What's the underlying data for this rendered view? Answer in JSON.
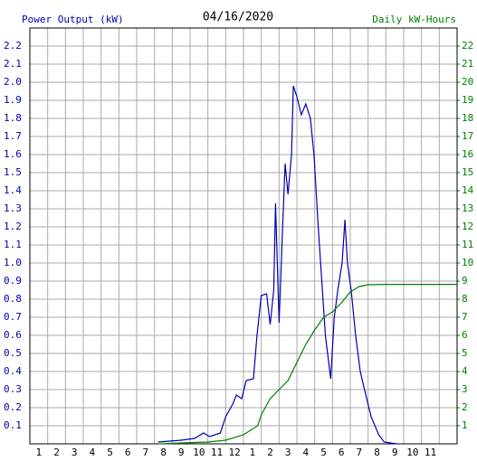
{
  "chart_data": {
    "type": "line",
    "title": "04/16/2020",
    "y_label": "Power Output (kW)",
    "y2_label": "Daily kW-Hours",
    "xlim": [
      0,
      24
    ],
    "xticks": [
      1,
      2,
      3,
      4,
      5,
      6,
      7,
      8,
      9,
      10,
      11,
      12,
      {
        "value": 13,
        "label": "1"
      },
      {
        "value": 14,
        "label": "2"
      },
      {
        "value": 15,
        "label": "3"
      },
      {
        "value": 16,
        "label": "4"
      },
      {
        "value": 17,
        "label": "5"
      },
      {
        "value": 18,
        "label": "6"
      },
      {
        "value": 19,
        "label": "7"
      },
      {
        "value": 20,
        "label": "8"
      },
      {
        "value": 21,
        "label": "9"
      },
      {
        "value": 22,
        "label": "10"
      },
      {
        "value": 23,
        "label": "11"
      }
    ],
    "ylim": [
      0,
      2.3
    ],
    "yticks": [
      0.1,
      0.2,
      0.3,
      0.4,
      0.5,
      0.6,
      0.7,
      0.8,
      0.9,
      {
        "value": 1,
        "label": "1.0"
      },
      1.1,
      1.2,
      1.3,
      1.4,
      1.5,
      1.6,
      1.7,
      1.8,
      1.9,
      {
        "value": 2,
        "label": "2.0"
      },
      2.1,
      2.2
    ],
    "y2lim": [
      0,
      23
    ],
    "y2ticks": [
      1,
      2,
      3,
      4,
      5,
      6,
      7,
      8,
      9,
      10,
      11,
      12,
      13,
      14,
      15,
      16,
      17,
      18,
      19,
      20,
      21,
      22
    ],
    "grid": true,
    "series": [
      {
        "name": "Power Output (kW)",
        "color": "#0000b0",
        "x": [
          7.2,
          8.5,
          9.25,
          9.76,
          10.1,
          10.7,
          11.0,
          11.4,
          11.6,
          11.9,
          12.15,
          12.56,
          12.76,
          13.0,
          13.3,
          13.5,
          13.7,
          13.8,
          14.0,
          14.2,
          14.34,
          14.5,
          14.7,
          14.8,
          15.0,
          15.25,
          15.5,
          15.76,
          15.96,
          16.2,
          16.4,
          16.6,
          16.9,
          17.1,
          17.3,
          17.54,
          17.7,
          17.84,
          18.05,
          18.3,
          18.56,
          18.8,
          19.17,
          19.6,
          19.9,
          20.6
        ],
        "values": [
          0.01,
          0.02,
          0.03,
          0.06,
          0.04,
          0.06,
          0.15,
          0.22,
          0.27,
          0.25,
          0.35,
          0.36,
          0.6,
          0.82,
          0.83,
          0.66,
          0.85,
          1.33,
          0.67,
          1.2,
          1.55,
          1.38,
          1.6,
          1.98,
          1.92,
          1.82,
          1.88,
          1.8,
          1.6,
          1.2,
          0.9,
          0.6,
          0.36,
          0.7,
          0.85,
          1.0,
          1.24,
          1.0,
          0.85,
          0.6,
          0.4,
          0.3,
          0.15,
          0.05,
          0.01,
          0
        ]
      },
      {
        "name": "Daily kW-Hours",
        "color": "#008000",
        "axis": "y2",
        "x": [
          7.2,
          10,
          11,
          12,
          12.8,
          13.0,
          13.5,
          14.0,
          14.5,
          15.0,
          15.5,
          16.0,
          16.5,
          17.0,
          17.5,
          18.0,
          18.5,
          19.0,
          20.0,
          24
        ],
        "values": [
          0,
          0.1,
          0.2,
          0.5,
          1.0,
          1.6,
          2.5,
          3.0,
          3.5,
          4.5,
          5.5,
          6.3,
          7.0,
          7.3,
          7.8,
          8.4,
          8.7,
          8.8,
          8.82,
          8.82
        ]
      }
    ]
  }
}
